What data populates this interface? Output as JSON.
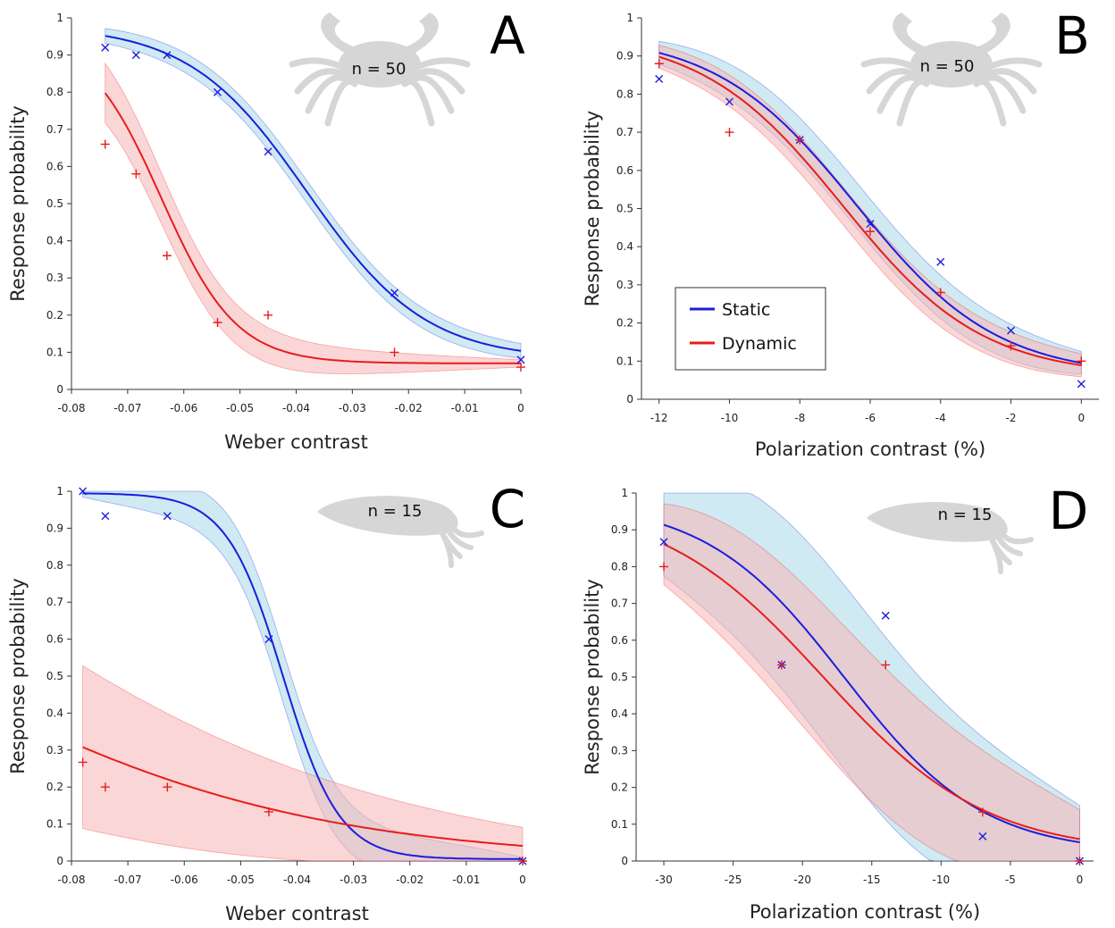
{
  "chart_data": [
    {
      "panel": "A",
      "type": "line",
      "animal": "crab",
      "n_label": "n = 50",
      "xlabel": "Weber contrast",
      "ylabel": "Response probability",
      "xlim": [
        -0.08,
        0
      ],
      "ylim": [
        0,
        1
      ],
      "xticks": [
        -0.08,
        -0.07,
        -0.06,
        -0.05,
        -0.04,
        -0.03,
        -0.02,
        -0.01,
        0
      ],
      "xtick_labels": [
        "-0.08",
        "-0.07",
        "-0.06",
        "-0.05",
        "-0.04",
        "-0.03",
        "-0.02",
        "-0.01",
        "0"
      ],
      "yticks": [
        0,
        0.1,
        0.2,
        0.3,
        0.4,
        0.5,
        0.6,
        0.7,
        0.8,
        0.9,
        1
      ],
      "ytick_labels": [
        "0",
        "0.1",
        "0.2",
        "0.3",
        "0.4",
        "0.5",
        "0.6",
        "0.7",
        "0.8",
        "0.9",
        "1"
      ],
      "series": [
        {
          "name": "Static",
          "color": "#1c1cdc",
          "band": "#a8d8ea",
          "marker": "x",
          "x": [
            -0.074,
            -0.0685,
            -0.063,
            -0.054,
            -0.045,
            -0.0225,
            0
          ],
          "y": [
            0.92,
            0.9,
            0.9,
            0.8,
            0.64,
            0.26,
            0.08
          ],
          "fit": {
            "x0": -0.038,
            "k": 95,
            "floor": 0.08,
            "ceil": 0.98
          },
          "fit_x": [
            -0.074,
            0
          ],
          "band_halfwidth": [
            0.02,
            0.03,
            0.02
          ]
        },
        {
          "name": "Dynamic",
          "color": "#e81c1c",
          "band": "#f7b4b4",
          "marker": "+",
          "x": [
            -0.074,
            -0.0685,
            -0.063,
            -0.054,
            -0.045,
            -0.0225,
            0
          ],
          "y": [
            0.66,
            0.58,
            0.36,
            0.18,
            0.2,
            0.1,
            0.06
          ],
          "fit": {
            "x0": -0.064,
            "k": 150,
            "floor": 0.07,
            "ceil": 0.96
          },
          "fit_x": [
            -0.074,
            0
          ],
          "band_halfwidth": [
            0.08,
            0.04,
            0.01
          ]
        }
      ]
    },
    {
      "panel": "B",
      "type": "line",
      "animal": "crab",
      "n_label": "n = 50",
      "xlabel": "Polarization contrast (%)",
      "ylabel": "Response probability",
      "xlim": [
        -12.5,
        0.5
      ],
      "ylim": [
        0,
        1
      ],
      "xticks": [
        -12,
        -10,
        -8,
        -6,
        -4,
        -2,
        0
      ],
      "xtick_labels": [
        "-12",
        "-10",
        "-8",
        "-6",
        "-4",
        "-2",
        "0"
      ],
      "yticks": [
        0,
        0.1,
        0.2,
        0.3,
        0.4,
        0.5,
        0.6,
        0.7,
        0.8,
        0.9,
        1
      ],
      "ytick_labels": [
        "0",
        "0.1",
        "0.2",
        "0.3",
        "0.4",
        "0.5",
        "0.6",
        "0.7",
        "0.8",
        "0.9",
        "1"
      ],
      "legend": {
        "position": "center-left",
        "entries": [
          "Static",
          "Dynamic"
        ]
      },
      "series": [
        {
          "name": "Static",
          "color": "#1c1cdc",
          "band": "#a8d8ea",
          "marker": "x",
          "x": [
            -12,
            -10,
            -8,
            -6,
            -4,
            -2,
            0
          ],
          "y": [
            0.84,
            0.78,
            0.68,
            0.46,
            0.36,
            0.18,
            0.04
          ],
          "fit": {
            "x0": -6.4,
            "k": 0.5,
            "floor": 0.06,
            "ceil": 0.96
          },
          "fit_x": [
            -12,
            0
          ],
          "band_halfwidth": [
            0.03,
            0.06,
            0.03
          ]
        },
        {
          "name": "Dynamic",
          "color": "#e81c1c",
          "band": "#f7b4b4",
          "marker": "+",
          "x": [
            -12,
            -10,
            -8,
            -6,
            -4,
            -2,
            0
          ],
          "y": [
            0.88,
            0.7,
            0.68,
            0.44,
            0.28,
            0.14,
            0.1
          ],
          "fit": {
            "x0": -6.8,
            "k": 0.5,
            "floor": 0.06,
            "ceil": 0.96
          },
          "fit_x": [
            -12,
            0
          ],
          "band_halfwidth": [
            0.03,
            0.05,
            0.03
          ]
        }
      ]
    },
    {
      "panel": "C",
      "type": "line",
      "animal": "cuttlefish",
      "n_label": "n = 15",
      "xlabel": "Weber contrast",
      "ylabel": "Response probability",
      "xlim": [
        -0.08,
        0
      ],
      "ylim": [
        0,
        1
      ],
      "xticks": [
        -0.08,
        -0.07,
        -0.06,
        -0.05,
        -0.04,
        -0.03,
        -0.02,
        -0.01,
        0
      ],
      "xtick_labels": [
        "-0.08",
        "-0.07",
        "-0.06",
        "-0.05",
        "-0.04",
        "-0.03",
        "-0.02",
        "-0.01",
        "0"
      ],
      "yticks": [
        0,
        0.1,
        0.2,
        0.3,
        0.4,
        0.5,
        0.6,
        0.7,
        0.8,
        0.9,
        1
      ],
      "ytick_labels": [
        "0",
        "0.1",
        "0.2",
        "0.3",
        "0.4",
        "0.5",
        "0.6",
        "0.7",
        "0.8",
        "0.9",
        "1"
      ],
      "series": [
        {
          "name": "Static",
          "color": "#1c1cdc",
          "band": "#a8d8ea",
          "marker": "x",
          "x": [
            -0.078,
            -0.074,
            -0.063,
            -0.045,
            0
          ],
          "y": [
            1.0,
            0.933,
            0.933,
            0.6,
            0.0
          ],
          "fit": {
            "x0": -0.0425,
            "k": 200,
            "floor": 0.005,
            "ceil": 0.995
          },
          "fit_x": [
            -0.078,
            0
          ],
          "band_halfwidth": [
            0.01,
            0.07,
            0.005
          ]
        },
        {
          "name": "Dynamic",
          "color": "#e81c1c",
          "band": "#f7b4b4",
          "marker": "+",
          "x": [
            -0.078,
            -0.074,
            -0.063,
            -0.045,
            0
          ],
          "y": [
            0.267,
            0.2,
            0.2,
            0.133,
            0.0
          ],
          "fit": {
            "x0": -0.105,
            "k": 30,
            "floor": 0.0,
            "ceil": 1.0
          },
          "fit_x": [
            -0.078,
            0
          ],
          "band_halfwidth": [
            0.22,
            0.12,
            0.05
          ]
        }
      ]
    },
    {
      "panel": "D",
      "type": "line",
      "animal": "cuttlefish",
      "n_label": "n = 15",
      "xlabel": "Polarization contrast (%)",
      "ylabel": "Response probability",
      "xlim": [
        -32,
        1
      ],
      "ylim": [
        0,
        1
      ],
      "xticks": [
        -30,
        -25,
        -20,
        -15,
        -10,
        -5,
        0
      ],
      "xtick_labels": [
        "-30",
        "-25",
        "-20",
        "-15",
        "-10",
        "-5",
        "0"
      ],
      "yticks": [
        0,
        0.1,
        0.2,
        0.3,
        0.4,
        0.5,
        0.6,
        0.7,
        0.8,
        0.9,
        1
      ],
      "ytick_labels": [
        "0",
        "0.1",
        "0.2",
        "0.3",
        "0.4",
        "0.5",
        "0.6",
        "0.7",
        "0.8",
        "0.9",
        "1"
      ],
      "series": [
        {
          "name": "Static",
          "color": "#1c1cdc",
          "band": "#a8d8ea",
          "marker": "x",
          "x": [
            -30,
            -21.5,
            -14,
            -7,
            0
          ],
          "y": [
            0.867,
            0.533,
            0.667,
            0.067,
            0.0
          ],
          "fit": {
            "x0": -17.0,
            "k": 0.2,
            "floor": 0.02,
            "ceil": 0.98
          },
          "fit_x": [
            -30,
            0
          ],
          "band_halfwidth": [
            0.14,
            0.25,
            0.1
          ]
        },
        {
          "name": "Dynamic",
          "color": "#e81c1c",
          "band": "#f7b4b4",
          "marker": "+",
          "x": [
            -30,
            -21.5,
            -14,
            -7,
            0
          ],
          "y": [
            0.8,
            0.533,
            0.533,
            0.133,
            0.0
          ],
          "fit": {
            "x0": -18.5,
            "k": 0.17,
            "floor": 0.02,
            "ceil": 0.98
          },
          "fit_x": [
            -30,
            0
          ],
          "band_halfwidth": [
            0.11,
            0.2,
            0.08
          ]
        }
      ]
    }
  ]
}
